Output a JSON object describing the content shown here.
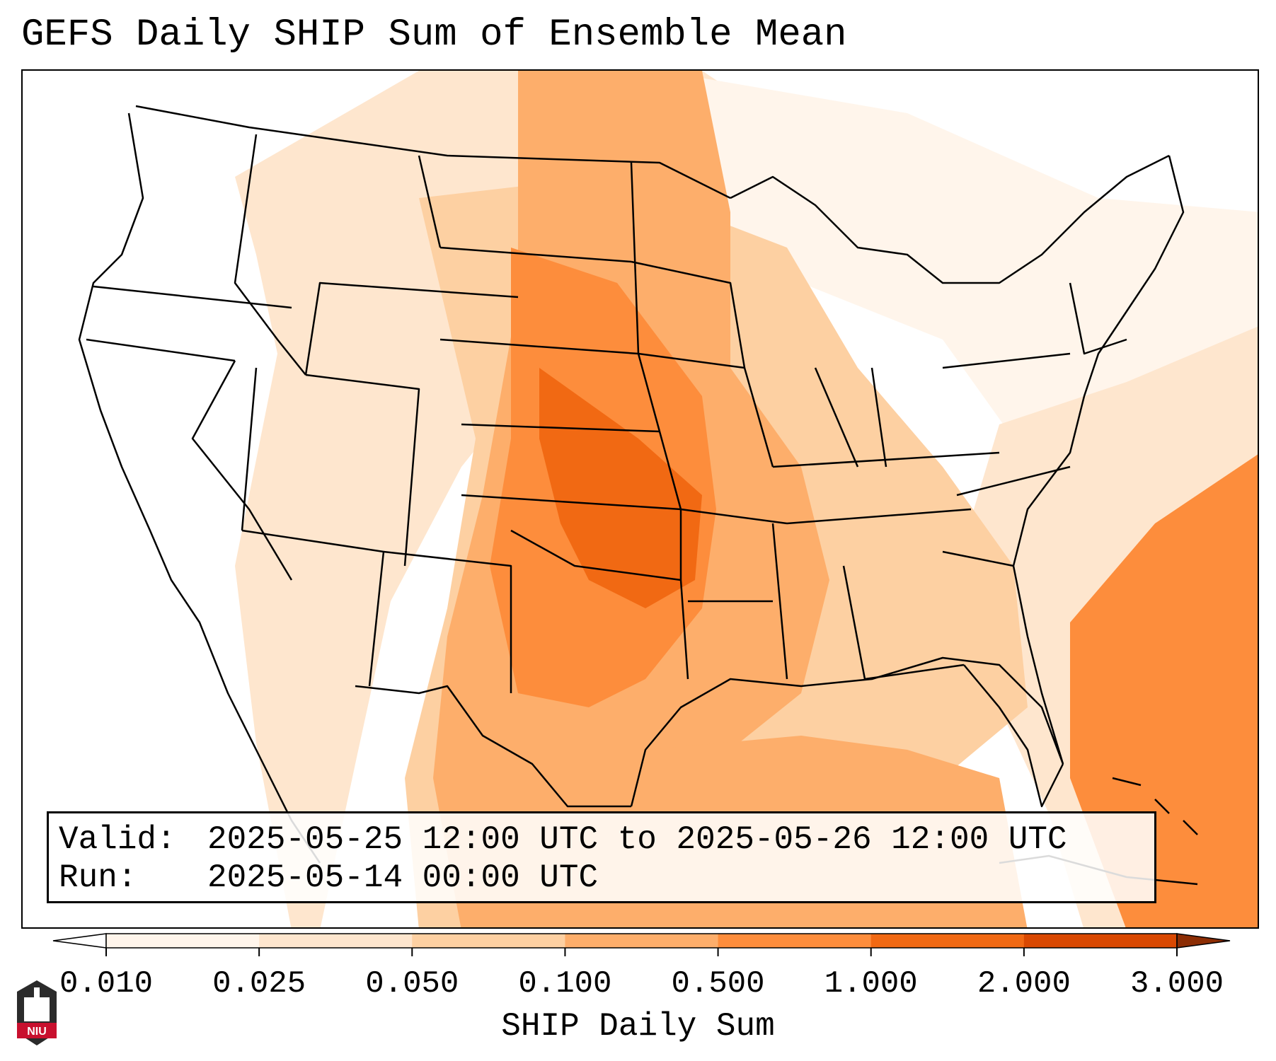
{
  "title": "GEFS Daily SHIP Sum of Ensemble Mean",
  "info": {
    "valid_label": "Valid:",
    "valid_value": "2025-05-25 12:00 UTC to 2025-05-26 12:00 UTC",
    "run_label": "Run:",
    "run_value": "2025-05-14 00:00 UTC"
  },
  "colorbar": {
    "label": "SHIP Daily Sum",
    "ticks": [
      "0.010",
      "0.025",
      "0.050",
      "0.100",
      "0.500",
      "1.000",
      "2.000",
      "3.000"
    ],
    "colors": [
      "#fff5eb",
      "#fee6ce",
      "#fdd0a2",
      "#fdae6b",
      "#fd8d3c",
      "#f16913",
      "#d94801"
    ],
    "under_color": "#ffffff",
    "over_color": "#8c2d04",
    "extend": "both"
  },
  "logo": {
    "text": "NIU",
    "color": "#c8102e"
  },
  "colors": {
    "state_lines": "#000000",
    "water": "#ffffff"
  },
  "map": {
    "region": "Continental United States",
    "field": "SHIP daily sum, ensemble mean"
  }
}
